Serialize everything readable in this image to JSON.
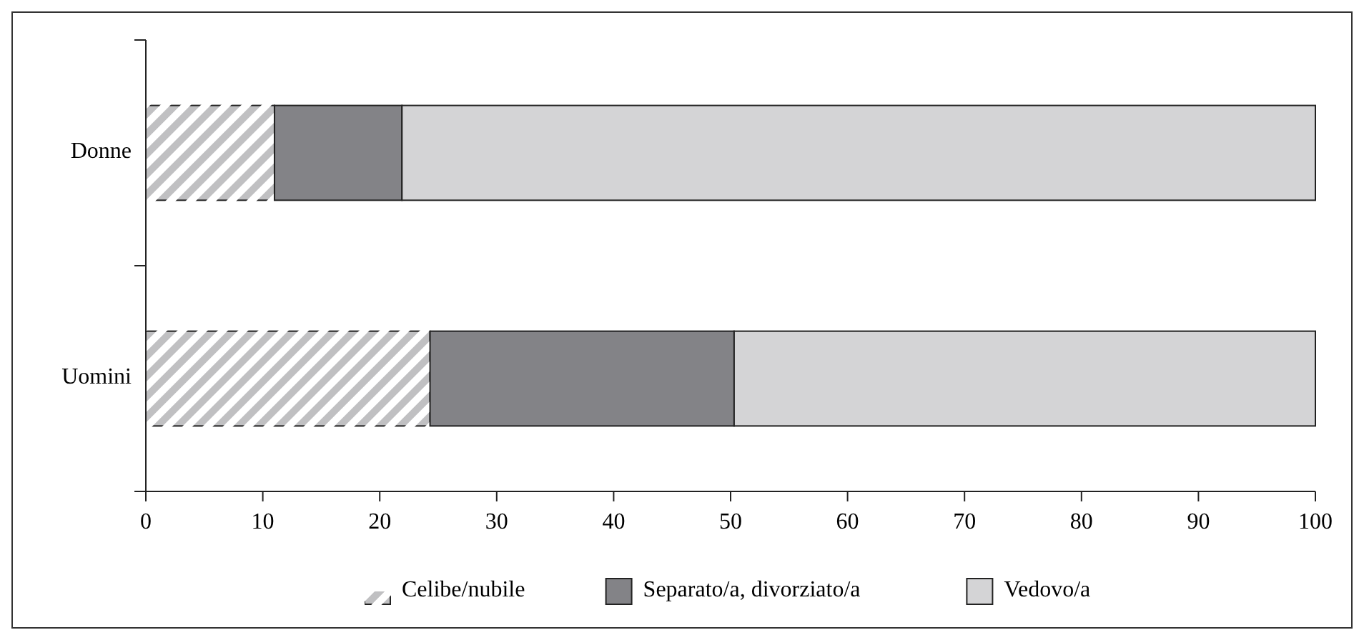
{
  "chart_data": {
    "type": "bar",
    "orientation": "horizontal",
    "stacked": true,
    "categories": [
      "Donne",
      "Uomini"
    ],
    "series": [
      {
        "name": "Celibe/nubile",
        "color": "#c0c0c2",
        "values": [
          11,
          24.3
        ]
      },
      {
        "name": "Separato/a, divorziato/a",
        "color": "#838387",
        "values": [
          10.9,
          26
        ]
      },
      {
        "name": "Vedovo/a",
        "color": "#d4d4d6",
        "values": [
          78.1,
          49.7
        ]
      }
    ],
    "xlim": [
      0,
      100
    ],
    "xticks": [
      0,
      10,
      20,
      30,
      40,
      50,
      60,
      70,
      80,
      90,
      100
    ],
    "legend": "bottom"
  }
}
